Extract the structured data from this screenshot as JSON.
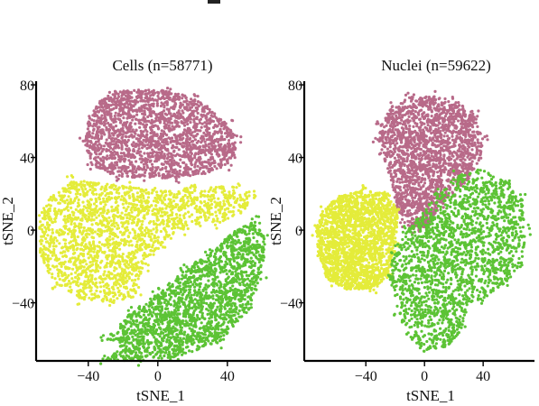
{
  "colors": {
    "cluster_pink": "#b86a89",
    "cluster_yellow": "#e4ec3a",
    "cluster_green": "#5cc335"
  },
  "chart_data": [
    {
      "type": "scatter",
      "title": "Cells (n=58771)",
      "xlabel": "tSNE_1",
      "ylabel": "tSNE_2",
      "xlim": [
        -70,
        65
      ],
      "ylim": [
        -72,
        82
      ],
      "x_ticks": [
        -40,
        0,
        40
      ],
      "y_ticks": [
        80,
        40,
        0,
        -40
      ],
      "x_tick_labels": [
        "-40",
        "0",
        "40"
      ],
      "y_tick_labels": [
        "80",
        "40",
        "0",
        "-40"
      ],
      "grid": false,
      "clusters": [
        {
          "color": "#b86a89",
          "outline": [
            [
              -42,
              48
            ],
            [
              -40,
              60
            ],
            [
              -35,
              70
            ],
            [
              -25,
              76
            ],
            [
              -10,
              78
            ],
            [
              5,
              77
            ],
            [
              20,
              73
            ],
            [
              30,
              67
            ],
            [
              40,
              58
            ],
            [
              45,
              50
            ],
            [
              45,
              42
            ],
            [
              40,
              36
            ],
            [
              28,
              31
            ],
            [
              10,
              29
            ],
            [
              -5,
              28
            ],
            [
              -25,
              30
            ],
            [
              -38,
              36
            ]
          ]
        },
        {
          "color": "#e4ec3a",
          "outline": [
            [
              -62,
              18
            ],
            [
              -50,
              28
            ],
            [
              -35,
              26
            ],
            [
              -18,
              24
            ],
            [
              -2,
              22
            ],
            [
              20,
              24
            ],
            [
              45,
              24
            ],
            [
              54,
              19
            ],
            [
              50,
              10
            ],
            [
              35,
              4
            ],
            [
              15,
              0
            ],
            [
              2,
              -8
            ],
            [
              -8,
              -22
            ],
            [
              -12,
              -36
            ],
            [
              -25,
              -40
            ],
            [
              -45,
              -38
            ],
            [
              -60,
              -30
            ],
            [
              -68,
              -12
            ],
            [
              -68,
              8
            ]
          ]
        },
        {
          "color": "#5cc335",
          "outline": [
            [
              -20,
              -62
            ],
            [
              -30,
              -72
            ],
            [
              -10,
              -72
            ],
            [
              10,
              -70
            ],
            [
              35,
              -62
            ],
            [
              52,
              -45
            ],
            [
              60,
              -25
            ],
            [
              62,
              -5
            ],
            [
              56,
              5
            ],
            [
              45,
              0
            ],
            [
              30,
              -12
            ],
            [
              15,
              -22
            ],
            [
              0,
              -35
            ],
            [
              -15,
              -45
            ],
            [
              -30,
              -60
            ]
          ]
        }
      ]
    },
    {
      "type": "scatter",
      "title": "Nuclei (n=59622)",
      "xlabel": "tSNE_1",
      "ylabel": "tSNE_2",
      "xlim": [
        -82,
        75
      ],
      "ylim": [
        -72,
        82
      ],
      "x_ticks": [
        -40,
        0,
        40
      ],
      "y_ticks": [
        80,
        40,
        0,
        -40
      ],
      "x_tick_labels": [
        "-40",
        "0",
        "40"
      ],
      "y_tick_labels": [
        "80",
        "40",
        "0",
        "-40"
      ],
      "grid": false,
      "clusters": [
        {
          "color": "#b86a89",
          "outline": [
            [
              -30,
              58
            ],
            [
              -22,
              68
            ],
            [
              -10,
              73
            ],
            [
              5,
              74
            ],
            [
              22,
              71
            ],
            [
              34,
              63
            ],
            [
              40,
              50
            ],
            [
              38,
              38
            ],
            [
              30,
              28
            ],
            [
              20,
              20
            ],
            [
              12,
              14
            ],
            [
              2,
              2
            ],
            [
              -6,
              -2
            ],
            [
              -14,
              4
            ],
            [
              -20,
              14
            ],
            [
              -22,
              26
            ],
            [
              -28,
              40
            ],
            [
              -32,
              50
            ]
          ]
        },
        {
          "color": "#e4ec3a",
          "outline": [
            [
              -70,
              10
            ],
            [
              -60,
              18
            ],
            [
              -42,
              22
            ],
            [
              -25,
              20
            ],
            [
              -18,
              10
            ],
            [
              -20,
              -10
            ],
            [
              -24,
              -25
            ],
            [
              -35,
              -32
            ],
            [
              -52,
              -33
            ],
            [
              -66,
              -28
            ],
            [
              -72,
              -14
            ],
            [
              -74,
              0
            ]
          ]
        },
        {
          "color": "#5cc335",
          "outline": [
            [
              -18,
              -45
            ],
            [
              -12,
              -58
            ],
            [
              0,
              -66
            ],
            [
              15,
              -65
            ],
            [
              25,
              -55
            ],
            [
              30,
              -40
            ],
            [
              40,
              -38
            ],
            [
              55,
              -30
            ],
            [
              66,
              -18
            ],
            [
              70,
              0
            ],
            [
              66,
              18
            ],
            [
              56,
              28
            ],
            [
              38,
              33
            ],
            [
              22,
              30
            ],
            [
              10,
              20
            ],
            [
              0,
              12
            ],
            [
              -12,
              0
            ],
            [
              -22,
              -10
            ],
            [
              -24,
              -25
            ]
          ]
        }
      ]
    }
  ]
}
